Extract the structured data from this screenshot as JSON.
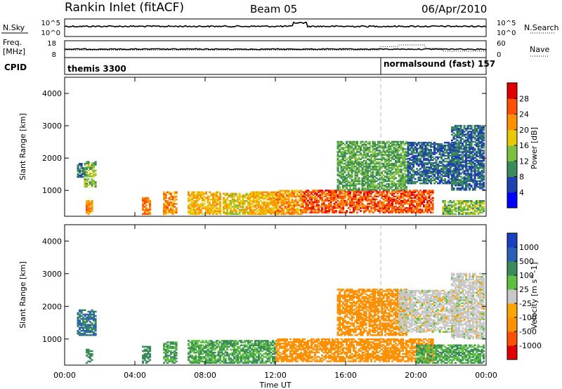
{
  "header": {
    "station": "Rankin Inlet (fitACF)",
    "beam": "Beam 05",
    "date": "06/Apr/2010"
  },
  "strip_panels": {
    "nsky": {
      "label": "N.Sky",
      "ytick_top": "10^5",
      "ytick_bottom": "10^0",
      "right_label": "N.Search",
      "right_tick_top": "10^5",
      "right_tick_bottom": "10^0"
    },
    "freq": {
      "label_line1": "Freq.",
      "label_line2": "[MHz]",
      "ytick_top": "18",
      "ytick_bottom": "8",
      "right_label": "Nave",
      "right_tick_top": "60",
      "right_tick_bottom": "0"
    },
    "cpid": {
      "label": "CPID",
      "segments": [
        {
          "name": "themis 3300",
          "start_hour": 0
        },
        {
          "name": "normalsound (fast) 157",
          "start_hour": 18
        }
      ]
    }
  },
  "colors": {
    "power": [
      "#0000ff",
      "#2040b0",
      "#3a8a5a",
      "#7cc040",
      "#e8c800",
      "#ff9000",
      "#ff5000",
      "#e00000"
    ],
    "velocity": [
      "#e00000",
      "#ff5000",
      "#ff9000",
      "#ffa500",
      "#c8c8c8",
      "#5ec040",
      "#3a8a5a",
      "#2c60b8",
      "#1840c0"
    ]
  },
  "chart_data": [
    {
      "type": "heatmap",
      "name": "power-panel",
      "ylabel": "Slant Range [km]",
      "yticks": [
        "1000",
        "2000",
        "3000",
        "4000"
      ],
      "ylim": [
        200,
        4500
      ],
      "xlim": [
        0,
        24
      ],
      "colorbar": {
        "label": "Power [dB]",
        "ticks": [
          "4",
          "8",
          "12",
          "16",
          "20",
          "24",
          "28"
        ],
        "range": [
          0,
          32
        ]
      },
      "regions": [
        {
          "h0": 0.7,
          "h1": 1.1,
          "r0": 1400,
          "r1": 1850,
          "v": 8
        },
        {
          "h0": 1.1,
          "h1": 1.8,
          "r0": 1100,
          "r1": 1900,
          "v": 14
        },
        {
          "h0": 1.2,
          "h1": 1.6,
          "r0": 250,
          "r1": 700,
          "v": 22
        },
        {
          "h0": 4.4,
          "h1": 4.8,
          "r0": 250,
          "r1": 750,
          "v": 24
        },
        {
          "h0": 5.6,
          "h1": 6.3,
          "r0": 250,
          "r1": 950,
          "v": 22
        },
        {
          "h0": 7.0,
          "h1": 8.8,
          "r0": 250,
          "r1": 950,
          "v": 20
        },
        {
          "h0": 9.0,
          "h1": 10.5,
          "r0": 250,
          "r1": 900,
          "v": 18
        },
        {
          "h0": 10.5,
          "h1": 12.0,
          "r0": 250,
          "r1": 950,
          "v": 20
        },
        {
          "h0": 12.0,
          "h1": 13.5,
          "r0": 250,
          "r1": 1000,
          "v": 22
        },
        {
          "h0": 13.5,
          "h1": 21.0,
          "r0": 300,
          "r1": 1000,
          "v": 26
        },
        {
          "h0": 15.5,
          "h1": 19.5,
          "r0": 1000,
          "r1": 2500,
          "v": 12
        },
        {
          "h0": 19.5,
          "h1": 22.5,
          "r0": 1200,
          "r1": 2500,
          "v": 8
        },
        {
          "h0": 22.0,
          "h1": 23.9,
          "r0": 1000,
          "r1": 3000,
          "v": 8
        },
        {
          "h0": 21.5,
          "h1": 23.9,
          "r0": 250,
          "r1": 700,
          "v": 14
        }
      ]
    },
    {
      "type": "heatmap",
      "name": "velocity-panel",
      "ylabel": "Slant Range [km]",
      "yticks": [
        "1000",
        "2000",
        "3000",
        "4000"
      ],
      "ylim": [
        200,
        4500
      ],
      "xlim": [
        0,
        24
      ],
      "xticks": [
        "00:00",
        "04:00",
        "08:00",
        "12:00",
        "16:00",
        "20:00",
        "00:00"
      ],
      "xlabel": "Time UT",
      "colorbar": {
        "label": "Velocity [m s^-1]",
        "ticks": [
          "-1000",
          "-500",
          "-100",
          "-25",
          "25",
          "100",
          "500",
          "1000"
        ]
      },
      "regions": [
        {
          "h0": 0.7,
          "h1": 1.8,
          "r0": 1100,
          "r1": 1900,
          "v": 500
        },
        {
          "h0": 1.2,
          "h1": 1.6,
          "r0": 250,
          "r1": 700,
          "v": 150
        },
        {
          "h0": 4.4,
          "h1": 4.8,
          "r0": 250,
          "r1": 750,
          "v": 150
        },
        {
          "h0": 5.6,
          "h1": 6.3,
          "r0": 250,
          "r1": 900,
          "v": 100
        },
        {
          "h0": 7.0,
          "h1": 12.0,
          "r0": 250,
          "r1": 950,
          "v": 100
        },
        {
          "h0": 12.0,
          "h1": 21.0,
          "r0": 300,
          "r1": 1000,
          "v": -300
        },
        {
          "h0": 15.5,
          "h1": 19.5,
          "r0": 1100,
          "r1": 2500,
          "v": -300
        },
        {
          "h0": 19.0,
          "h1": 22.5,
          "r0": 1200,
          "r1": 2500,
          "v": 0
        },
        {
          "h0": 22.0,
          "h1": 23.9,
          "r0": 1000,
          "r1": 3000,
          "v": 0
        },
        {
          "h0": 20.0,
          "h1": 23.9,
          "r0": 250,
          "r1": 800,
          "v": 100
        }
      ]
    }
  ]
}
